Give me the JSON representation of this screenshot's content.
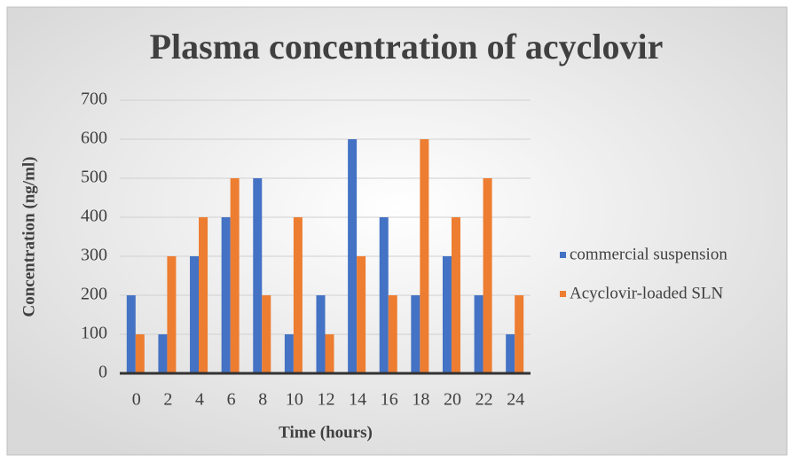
{
  "chart_data": {
    "type": "bar",
    "title": "Plasma concentration of acyclovir",
    "x_label": "Time (hours)",
    "y_label": "Concentration (ng/ml)",
    "categories": [
      "0",
      "2",
      "4",
      "6",
      "8",
      "10",
      "12",
      "14",
      "16",
      "18",
      "20",
      "22",
      "24"
    ],
    "series": [
      {
        "name": "commercial suspension",
        "color": "#4472c4",
        "values": [
          200,
          100,
          300,
          400,
          500,
          100,
          200,
          600,
          400,
          200,
          300,
          200,
          100
        ]
      },
      {
        "name": "Acyclovir-loaded SLN",
        "color": "#ed7d31",
        "values": [
          100,
          300,
          400,
          500,
          200,
          400,
          100,
          300,
          200,
          600,
          400,
          500,
          200
        ]
      }
    ],
    "ylim": [
      0,
      700
    ],
    "yticks": [
      0,
      100,
      200,
      300,
      400,
      500,
      600,
      700
    ],
    "grid": true,
    "legend": "right"
  }
}
